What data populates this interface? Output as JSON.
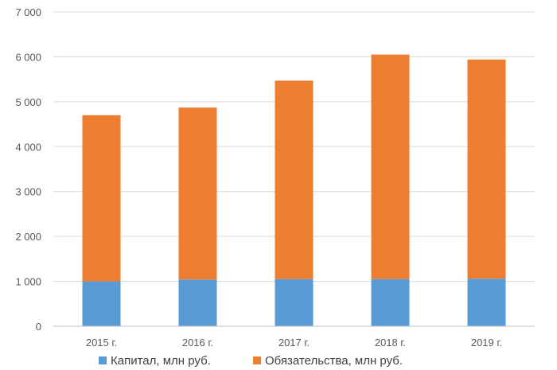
{
  "chart_data": {
    "type": "bar",
    "stacked": true,
    "title": "",
    "xlabel": "",
    "ylabel": "",
    "categories": [
      "2015 г.",
      "2016 г.",
      "2017 г.",
      "2018 г.",
      "2019 г."
    ],
    "series": [
      {
        "name": "Капитал, млн руб.",
        "color": "#5b9bd5",
        "values": [
          1000,
          1040,
          1050,
          1050,
          1060
        ]
      },
      {
        "name": "Обязательства, млн руб.",
        "color": "#ed7d31",
        "values": [
          3700,
          3830,
          4420,
          5000,
          4880
        ]
      }
    ],
    "ylim": [
      0,
      7000
    ],
    "yticks": [
      0,
      1000,
      2000,
      3000,
      4000,
      5000,
      6000,
      7000
    ],
    "ytick_labels": [
      "0",
      "1 000",
      "2 000",
      "3 000",
      "4 000",
      "5 000",
      "6 000",
      "7 000"
    ],
    "grid": true,
    "legend_position": "bottom"
  }
}
